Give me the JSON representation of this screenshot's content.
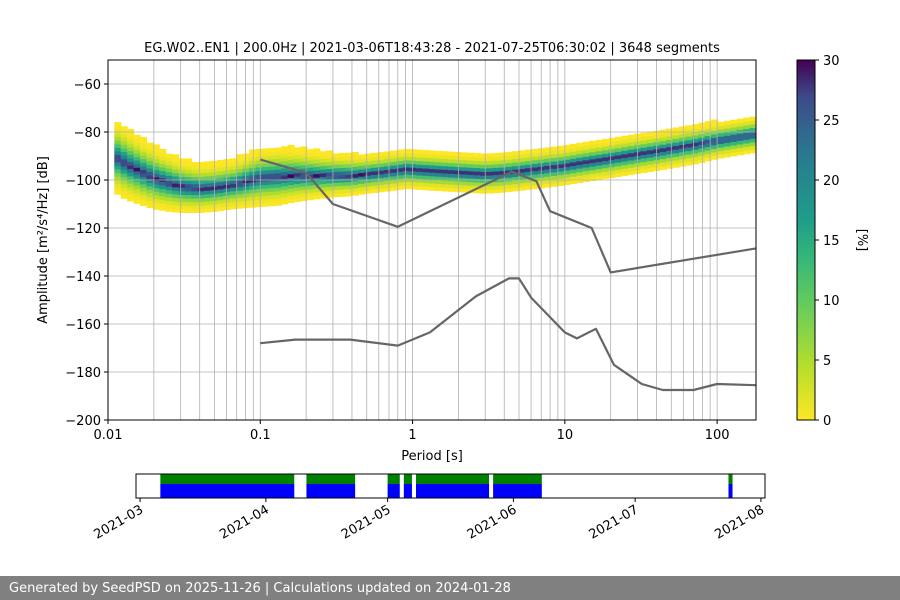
{
  "chart_data": {
    "type": "heatmap",
    "title": "EG.W02..EN1 | 200.0Hz | 2021-03-06T18:43:28 - 2021-07-25T06:30:02 | 3648 segments",
    "xlabel": "Period [s]",
    "ylabel": "Amplitude [m²/s⁴/Hz] [dB]",
    "xscale": "log",
    "xlim": [
      0.01,
      180
    ],
    "ylim": [
      -200,
      -50
    ],
    "x_tick_labels": [
      "0.01",
      "0.1",
      "1",
      "10",
      "100"
    ],
    "y_ticks": [
      -60,
      -80,
      -100,
      -120,
      -140,
      -160,
      -180,
      -200
    ],
    "y_tick_labels": [
      "−60",
      "−80",
      "−100",
      "−120",
      "−140",
      "−160",
      "−180",
      "−200"
    ],
    "grid": true,
    "colorbar": {
      "label": "[%]",
      "range": [
        0,
        30
      ],
      "ticks": [
        0,
        5,
        10,
        15,
        20,
        25,
        30
      ],
      "colormap": "viridis_r"
    },
    "density": {
      "x": [
        0.011,
        0.013,
        0.016,
        0.02,
        0.025,
        0.03,
        0.04,
        0.05,
        0.065,
        0.08,
        0.1,
        0.13,
        0.17,
        0.22,
        0.3,
        0.4,
        0.5,
        0.7,
        0.9,
        1.2,
        1.6,
        2.2,
        3,
        4,
        5.5,
        7.5,
        10,
        14,
        20,
        28,
        40,
        55,
        75,
        100,
        140,
        175
      ],
      "center": [
        -90,
        -93,
        -96,
        -99,
        -101,
        -102.5,
        -103.5,
        -103,
        -102,
        -100.5,
        -99,
        -98.5,
        -98,
        -98,
        -98,
        -98,
        -97.5,
        -96.5,
        -95.5,
        -96,
        -96.5,
        -97,
        -97.5,
        -97,
        -96,
        -95,
        -94,
        -92.5,
        -91,
        -89.5,
        -88,
        -86.5,
        -85,
        -83.5,
        -82,
        -81
      ],
      "spread": [
        15,
        15,
        14,
        13,
        12,
        11,
        10,
        10,
        10,
        11,
        12,
        12,
        11,
        10,
        9,
        8.5,
        8,
        8,
        8,
        8,
        8,
        8,
        8,
        8,
        8,
        8,
        8,
        8,
        8,
        8,
        8,
        8,
        8,
        7.5,
        7.5,
        7.5
      ]
    },
    "series": [
      {
        "color": "#666666",
        "x": [
          0.1,
          0.2,
          0.3,
          0.8,
          4.5,
          6.5,
          8,
          15,
          20,
          180
        ],
        "y": [
          -91.5,
          -97,
          -110,
          -119.5,
          -96.5,
          -100.5,
          -113,
          -120,
          -138.5,
          -128.5
        ]
      },
      {
        "color": "#666666",
        "x": [
          0.1,
          0.17,
          0.39,
          0.8,
          1.3,
          2.6,
          4.3,
          5,
          6,
          10,
          12,
          16,
          21,
          32,
          44,
          70,
          100,
          180
        ],
        "y": [
          -168,
          -166.5,
          -166.5,
          -169,
          -163.5,
          -148.5,
          -141,
          -141,
          -149,
          -163.5,
          -166,
          -162,
          -177,
          -185,
          -187.5,
          -187.5,
          -185,
          -185.5
        ]
      }
    ]
  },
  "timeline": {
    "tick_labels": [
      "2021-03",
      "2021-04",
      "2021-05",
      "2021-06",
      "2021-07",
      "2021-08"
    ],
    "colors": {
      "available": "#008000",
      "processed": "#0000ff"
    },
    "segments": [
      [
        "2021-03-06",
        "2021-04-08"
      ],
      [
        "2021-04-11",
        "2021-04-23"
      ],
      [
        "2021-05-01",
        "2021-05-04"
      ],
      [
        "2021-05-05",
        "2021-05-07"
      ],
      [
        "2021-05-08",
        "2021-05-26"
      ],
      [
        "2021-05-27",
        "2021-06-08"
      ],
      [
        "2021-07-24",
        "2021-07-25"
      ]
    ]
  },
  "footer": {
    "text": "Generated by SeedPSD on 2025-11-26 | Calculations updated on 2024-01-28"
  }
}
